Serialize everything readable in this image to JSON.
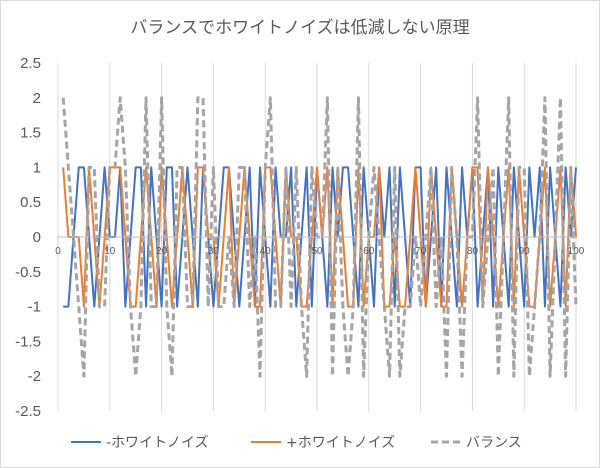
{
  "chart_data": {
    "type": "line",
    "title": "バランスでホワイトノイズは低減しない原理",
    "xlabel": "",
    "ylabel": "",
    "xlim": [
      0,
      100
    ],
    "ylim": [
      -2.5,
      2.5
    ],
    "y_ticks": [
      "2.5",
      "2",
      "1.5",
      "1",
      "0.5",
      "0",
      "-0.5",
      "-1",
      "-1.5",
      "-2",
      "-2.5"
    ],
    "x_ticks": [
      "0",
      "10",
      "20",
      "30",
      "40",
      "50",
      "60",
      "70",
      "80",
      "90",
      "100"
    ],
    "grid": "vertical",
    "legend_position": "bottom",
    "x": [
      1,
      2,
      3,
      4,
      5,
      6,
      7,
      8,
      9,
      10,
      11,
      12,
      13,
      14,
      15,
      16,
      17,
      18,
      19,
      20,
      21,
      22,
      23,
      24,
      25,
      26,
      27,
      28,
      29,
      30,
      31,
      32,
      33,
      34,
      35,
      36,
      37,
      38,
      39,
      40,
      41,
      42,
      43,
      44,
      45,
      46,
      47,
      48,
      49,
      50,
      51,
      52,
      53,
      54,
      55,
      56,
      57,
      58,
      59,
      60,
      61,
      62,
      63,
      64,
      65,
      66,
      67,
      68,
      69,
      70,
      71,
      72,
      73,
      74,
      75,
      76,
      77,
      78,
      79,
      80,
      81,
      82,
      83,
      84,
      85,
      86,
      87,
      88,
      89,
      90,
      91,
      92,
      93,
      94,
      95,
      96,
      97,
      98,
      99,
      100
    ],
    "series": [
      {
        "name": "-ホワイトノイズ",
        "color": "#4472c4",
        "dash": "solid",
        "values": [
          -1,
          -1,
          0,
          1,
          1,
          0,
          -1,
          0,
          1,
          0,
          0,
          1,
          -1,
          0,
          1,
          1,
          -1,
          1,
          0,
          -1,
          1,
          1,
          -1,
          0,
          1,
          0,
          -1,
          1,
          0,
          -1,
          0,
          1,
          1,
          0,
          -1,
          0,
          1,
          -1,
          1,
          0,
          -1,
          1,
          0,
          0,
          1,
          -1,
          0,
          1,
          -1,
          1,
          0,
          -1,
          1,
          0,
          1,
          1,
          0,
          -1,
          1,
          0,
          -1,
          1,
          0,
          1,
          -1,
          1,
          0,
          -1,
          1,
          1,
          -1,
          0,
          1,
          -1,
          1,
          0,
          -1,
          1,
          0,
          1,
          -1,
          0,
          1,
          -1,
          1,
          0,
          -1,
          1,
          0,
          -1,
          1,
          0,
          1,
          -1,
          1,
          0,
          -1,
          1,
          0,
          1
        ]
      },
      {
        "name": "+ホワイトノイズ",
        "color": "#ed7d31",
        "dash": "solid",
        "values": [
          1,
          0,
          0,
          0,
          -1,
          1,
          0,
          -1,
          0,
          1,
          1,
          1,
          0,
          -1,
          -1,
          0,
          1,
          0,
          -1,
          1,
          0,
          -1,
          0,
          1,
          0,
          -1,
          1,
          1,
          0,
          0,
          -1,
          0,
          1,
          -1,
          0,
          1,
          0,
          -1,
          -1,
          1,
          1,
          0,
          -1,
          1,
          0,
          0,
          -1,
          -1,
          0,
          1,
          0,
          1,
          -1,
          1,
          0,
          -1,
          -1,
          1,
          -1,
          0,
          0,
          1,
          -1,
          -1,
          0,
          -1,
          -1,
          0,
          1,
          0,
          -1,
          1,
          0,
          -1,
          -1,
          1,
          0,
          -1,
          0,
          1,
          1,
          -1,
          1,
          0,
          -1,
          0,
          1,
          -1,
          1,
          0,
          -1,
          -1,
          0,
          1,
          -1,
          0,
          1,
          -1,
          1,
          0
        ]
      },
      {
        "name": "バランス",
        "color": "#a5a5a5",
        "dash": "dashed",
        "values": [
          2,
          1,
          0,
          -1,
          -2,
          1,
          1,
          -1,
          -1,
          1,
          1,
          2,
          1,
          -1,
          -2,
          -1,
          2,
          -1,
          -1,
          2,
          -1,
          -2,
          1,
          1,
          -1,
          -1,
          2,
          2,
          -1,
          1,
          -1,
          -1,
          0,
          -1,
          1,
          1,
          -1,
          0,
          -2,
          1,
          2,
          -1,
          -1,
          1,
          -1,
          1,
          -1,
          -2,
          1,
          0,
          0,
          2,
          -2,
          1,
          -1,
          -2,
          -1,
          2,
          -2,
          0,
          1,
          0,
          -1,
          -2,
          1,
          -2,
          -1,
          -1,
          0,
          -1,
          0,
          1,
          -1,
          0,
          -2,
          1,
          0,
          -2,
          0,
          0,
          2,
          -1,
          0,
          1,
          -2,
          0,
          2,
          -2,
          1,
          1,
          -2,
          -1,
          0,
          2,
          -2,
          0,
          2,
          -2,
          1,
          -1
        ]
      }
    ]
  }
}
